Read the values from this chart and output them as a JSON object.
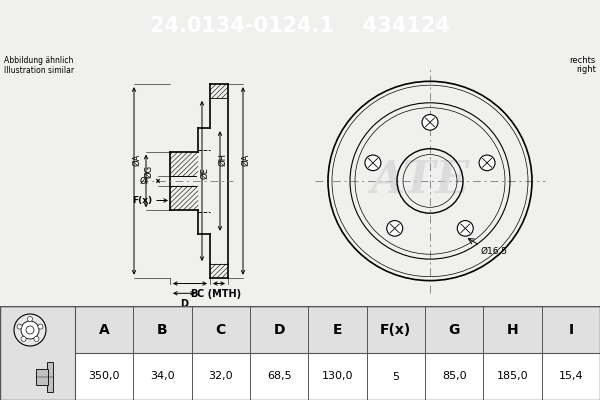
{
  "title_part_number": "24.0134-0124.1",
  "title_ref_number": "434124",
  "header_bg": "#0000cc",
  "header_text_color": "#ffffff",
  "body_bg": "#f0f0ee",
  "note_text1": "Abbildung ähnlich",
  "note_text2": "Illustration similar",
  "side_text1": "rechts",
  "side_text2": "right",
  "hole_label": "Ø16,5",
  "table_headers": [
    "A",
    "B",
    "C",
    "D",
    "E",
    "F(x)",
    "G",
    "H",
    "I"
  ],
  "table_values": [
    "350,0",
    "34,0",
    "32,0",
    "68,5",
    "130,0",
    "5",
    "85,0",
    "185,0",
    "15,4"
  ],
  "table_bg_header": "#e0e0e0",
  "table_bg_values": "#ffffff",
  "line_color": "#000000",
  "centerline_color": "#888888",
  "ate_watermark_color": "#cccccc"
}
